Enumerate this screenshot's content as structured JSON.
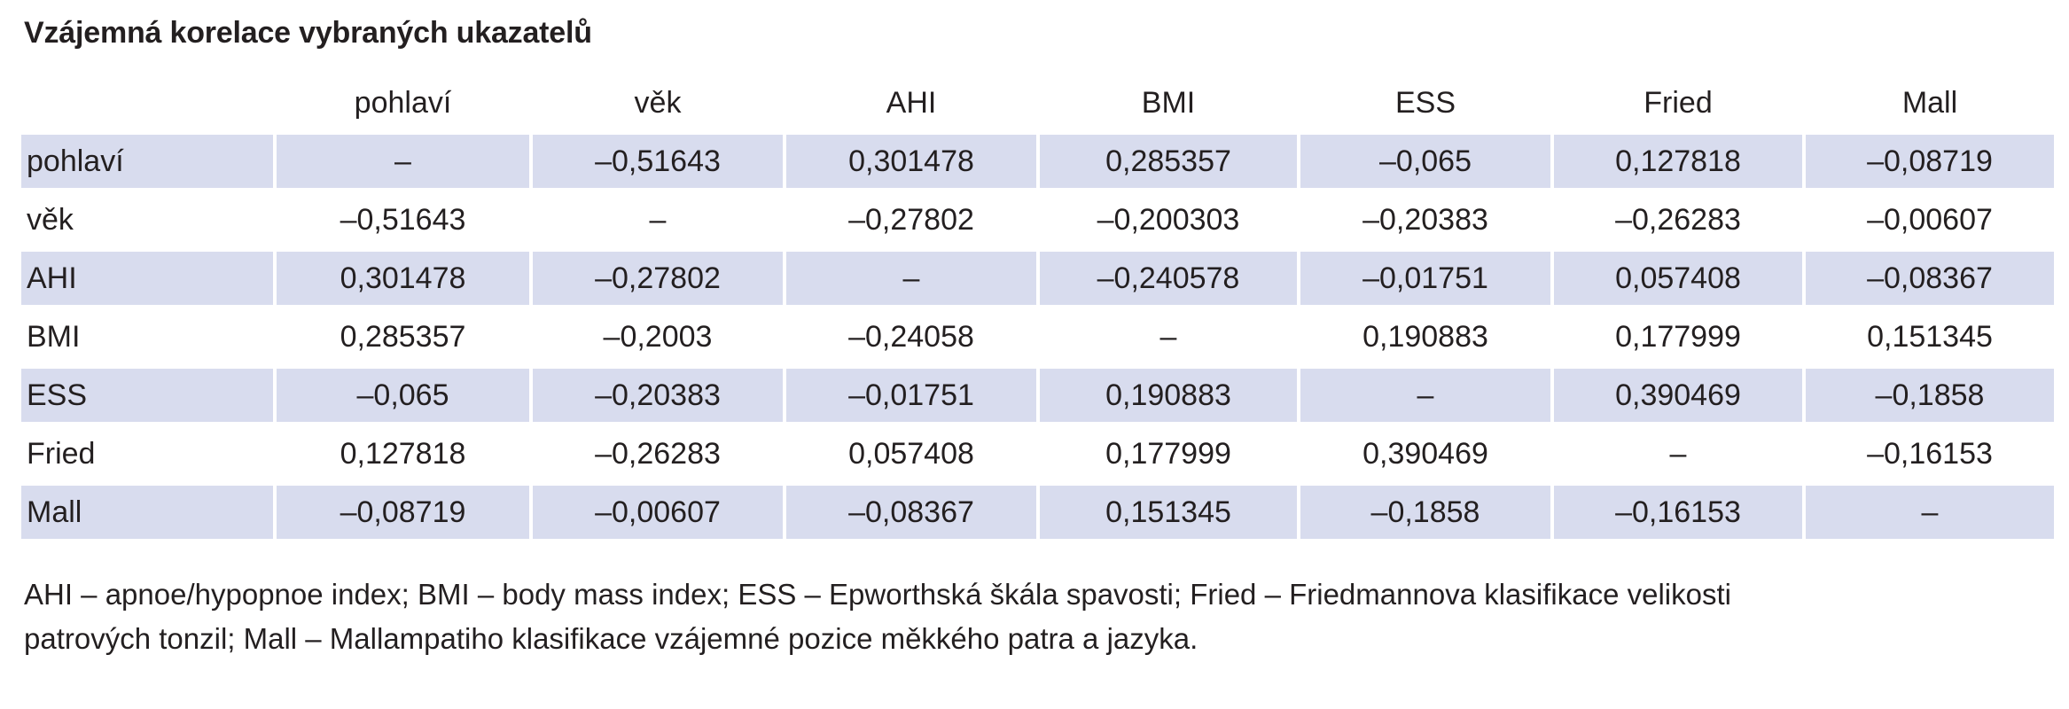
{
  "title": "Vzájemná korelace vybraných ukazatelů",
  "table": {
    "columns": [
      "pohlaví",
      "věk",
      "AHI",
      "BMI",
      "ESS",
      "Fried",
      "Mall"
    ],
    "rows": [
      {
        "label": "pohlaví",
        "values": [
          "–",
          "–0,51643",
          "0,301478",
          "0,285357",
          "–0,065",
          "0,127818",
          "–0,08719"
        ]
      },
      {
        "label": "věk",
        "values": [
          "–0,51643",
          "–",
          "–0,27802",
          "–0,200303",
          "–0,20383",
          "–0,26283",
          "–0,00607"
        ]
      },
      {
        "label": "AHI",
        "values": [
          "0,301478",
          "–0,27802",
          "–",
          "–0,240578",
          "–0,01751",
          "0,057408",
          "–0,08367"
        ]
      },
      {
        "label": "BMI",
        "values": [
          "0,285357",
          "–0,2003",
          "–0,24058",
          "–",
          "0,190883",
          "0,177999",
          "0,151345"
        ]
      },
      {
        "label": "ESS",
        "values": [
          "–0,065",
          "–0,20383",
          "–0,01751",
          "0,190883",
          "–",
          "0,390469",
          "–0,1858"
        ]
      },
      {
        "label": "Fried",
        "values": [
          "0,127818",
          "–0,26283",
          "0,057408",
          "0,177999",
          "0,390469",
          "–",
          "–0,16153"
        ]
      },
      {
        "label": "Mall",
        "values": [
          "–0,08719",
          "–0,00607",
          "–0,08367",
          "0,151345",
          "–0,1858",
          "–0,16153",
          "–"
        ]
      }
    ]
  },
  "footnote": {
    "line1": "AHI – apnoe/hypopnoe index; BMI – body mass index; ESS – Epworthská škála spavosti; Fried – Friedmannova klasifikace velikosti",
    "line2": "patrových tonzil; Mall – Mallampatiho klasifikace vzájemné pozice měkkého patra a jazyka."
  },
  "colors": {
    "row_shade": "#d8dcee",
    "text": "#231f20"
  }
}
